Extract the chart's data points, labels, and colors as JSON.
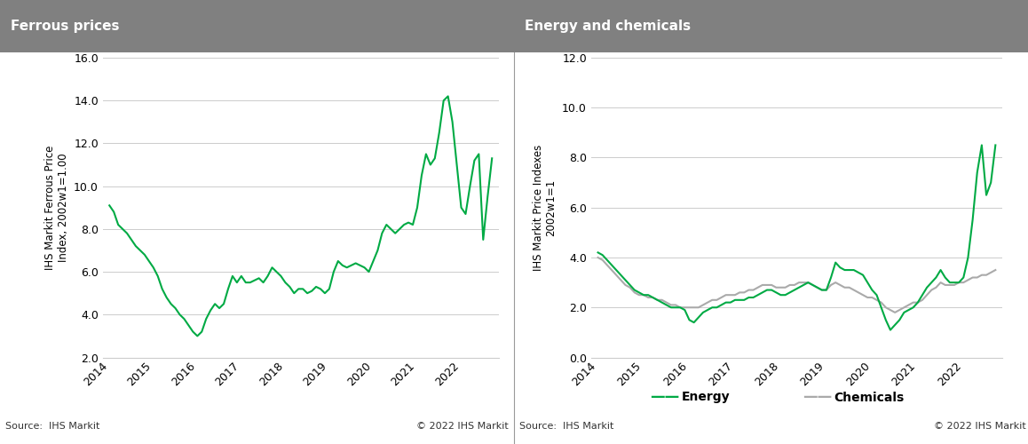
{
  "left_title": "Ferrous prices",
  "right_title": "Energy and chemicals",
  "left_ylabel": "IHS Markit Ferrous Price\nIndex, 2002w1=1.00",
  "right_ylabel": "IHS Markit Price Indexes\n2002w1=1",
  "left_ylim": [
    2.0,
    16.0
  ],
  "right_ylim": [
    0.0,
    12.0
  ],
  "left_yticks": [
    2.0,
    4.0,
    6.0,
    8.0,
    10.0,
    12.0,
    14.0,
    16.0
  ],
  "right_yticks": [
    0.0,
    2.0,
    4.0,
    6.0,
    8.0,
    10.0,
    12.0
  ],
  "xtick_years": [
    "2014",
    "2015",
    "2016",
    "2017",
    "2018",
    "2019",
    "2020",
    "2021",
    "2022"
  ],
  "header_color": "#808080",
  "header_text_color": "#ffffff",
  "line_green": "#00aa44",
  "line_gray": "#aaaaaa",
  "background_color": "#ffffff",
  "source_text": "Source:  IHS Markit",
  "copyright_text": "© 2022 IHS Markit",
  "legend_energy": "Energy",
  "legend_chemicals": "Chemicals",
  "ferrous_x": [
    2014.0,
    2014.1,
    2014.2,
    2014.3,
    2014.4,
    2014.5,
    2014.6,
    2014.7,
    2014.8,
    2014.9,
    2015.0,
    2015.1,
    2015.2,
    2015.3,
    2015.4,
    2015.5,
    2015.6,
    2015.7,
    2015.8,
    2015.9,
    2016.0,
    2016.1,
    2016.2,
    2016.3,
    2016.4,
    2016.5,
    2016.6,
    2016.7,
    2016.8,
    2016.9,
    2017.0,
    2017.1,
    2017.2,
    2017.3,
    2017.4,
    2017.5,
    2017.6,
    2017.7,
    2017.8,
    2017.9,
    2018.0,
    2018.1,
    2018.2,
    2018.3,
    2018.4,
    2018.5,
    2018.6,
    2018.7,
    2018.8,
    2018.9,
    2019.0,
    2019.1,
    2019.2,
    2019.3,
    2019.4,
    2019.5,
    2019.6,
    2019.7,
    2019.8,
    2019.9,
    2020.0,
    2020.1,
    2020.2,
    2020.3,
    2020.4,
    2020.5,
    2020.6,
    2020.7,
    2020.8,
    2020.9,
    2021.0,
    2021.1,
    2021.2,
    2021.3,
    2021.4,
    2021.5,
    2021.6,
    2021.7,
    2021.8,
    2021.9,
    2022.0,
    2022.1,
    2022.2,
    2022.3,
    2022.4,
    2022.5,
    2022.6,
    2022.7
  ],
  "ferrous_y": [
    9.1,
    8.8,
    8.2,
    8.0,
    7.8,
    7.5,
    7.2,
    7.0,
    6.8,
    6.5,
    6.2,
    5.8,
    5.2,
    4.8,
    4.5,
    4.3,
    4.0,
    3.8,
    3.5,
    3.2,
    3.0,
    3.2,
    3.8,
    4.2,
    4.5,
    4.3,
    4.5,
    5.2,
    5.8,
    5.5,
    5.8,
    5.5,
    5.5,
    5.6,
    5.7,
    5.5,
    5.8,
    6.2,
    6.0,
    5.8,
    5.5,
    5.3,
    5.0,
    5.2,
    5.2,
    5.0,
    5.1,
    5.3,
    5.2,
    5.0,
    5.2,
    6.0,
    6.5,
    6.3,
    6.2,
    6.3,
    6.4,
    6.3,
    6.2,
    6.0,
    6.5,
    7.0,
    7.8,
    8.2,
    8.0,
    7.8,
    8.0,
    8.2,
    8.3,
    8.2,
    9.0,
    10.5,
    11.5,
    11.0,
    11.3,
    12.5,
    14.0,
    14.2,
    13.0,
    11.0,
    9.0,
    8.7,
    10.0,
    11.2,
    11.5,
    7.5,
    9.5,
    11.3
  ],
  "energy_x": [
    2014.0,
    2014.1,
    2014.2,
    2014.3,
    2014.4,
    2014.5,
    2014.6,
    2014.7,
    2014.8,
    2014.9,
    2015.0,
    2015.1,
    2015.2,
    2015.3,
    2015.4,
    2015.5,
    2015.6,
    2015.7,
    2015.8,
    2015.9,
    2016.0,
    2016.1,
    2016.2,
    2016.3,
    2016.4,
    2016.5,
    2016.6,
    2016.7,
    2016.8,
    2016.9,
    2017.0,
    2017.1,
    2017.2,
    2017.3,
    2017.4,
    2017.5,
    2017.6,
    2017.7,
    2017.8,
    2017.9,
    2018.0,
    2018.1,
    2018.2,
    2018.3,
    2018.4,
    2018.5,
    2018.6,
    2018.7,
    2018.8,
    2018.9,
    2019.0,
    2019.1,
    2019.2,
    2019.3,
    2019.4,
    2019.5,
    2019.6,
    2019.7,
    2019.8,
    2019.9,
    2020.0,
    2020.1,
    2020.2,
    2020.3,
    2020.4,
    2020.5,
    2020.6,
    2020.7,
    2020.8,
    2020.9,
    2021.0,
    2021.1,
    2021.2,
    2021.3,
    2021.4,
    2021.5,
    2021.6,
    2021.7,
    2021.8,
    2021.9,
    2022.0,
    2022.1,
    2022.2,
    2022.3,
    2022.4,
    2022.5,
    2022.6,
    2022.7
  ],
  "energy_y": [
    4.2,
    4.1,
    3.9,
    3.7,
    3.5,
    3.3,
    3.1,
    2.9,
    2.7,
    2.6,
    2.5,
    2.5,
    2.4,
    2.3,
    2.2,
    2.1,
    2.0,
    2.0,
    2.0,
    1.9,
    1.5,
    1.4,
    1.6,
    1.8,
    1.9,
    2.0,
    2.0,
    2.1,
    2.2,
    2.2,
    2.3,
    2.3,
    2.3,
    2.4,
    2.4,
    2.5,
    2.6,
    2.7,
    2.7,
    2.6,
    2.5,
    2.5,
    2.6,
    2.7,
    2.8,
    2.9,
    3.0,
    2.9,
    2.8,
    2.7,
    2.7,
    3.2,
    3.8,
    3.6,
    3.5,
    3.5,
    3.5,
    3.4,
    3.3,
    3.0,
    2.7,
    2.5,
    2.0,
    1.5,
    1.1,
    1.3,
    1.5,
    1.8,
    1.9,
    2.0,
    2.2,
    2.5,
    2.8,
    3.0,
    3.2,
    3.5,
    3.2,
    3.0,
    3.0,
    3.0,
    3.2,
    4.0,
    5.5,
    7.4,
    8.5,
    6.5,
    7.0,
    8.5
  ],
  "chemicals_x": [
    2014.0,
    2014.1,
    2014.2,
    2014.3,
    2014.4,
    2014.5,
    2014.6,
    2014.7,
    2014.8,
    2014.9,
    2015.0,
    2015.1,
    2015.2,
    2015.3,
    2015.4,
    2015.5,
    2015.6,
    2015.7,
    2015.8,
    2015.9,
    2016.0,
    2016.1,
    2016.2,
    2016.3,
    2016.4,
    2016.5,
    2016.6,
    2016.7,
    2016.8,
    2016.9,
    2017.0,
    2017.1,
    2017.2,
    2017.3,
    2017.4,
    2017.5,
    2017.6,
    2017.7,
    2017.8,
    2017.9,
    2018.0,
    2018.1,
    2018.2,
    2018.3,
    2018.4,
    2018.5,
    2018.6,
    2018.7,
    2018.8,
    2018.9,
    2019.0,
    2019.1,
    2019.2,
    2019.3,
    2019.4,
    2019.5,
    2019.6,
    2019.7,
    2019.8,
    2019.9,
    2020.0,
    2020.1,
    2020.2,
    2020.3,
    2020.4,
    2020.5,
    2020.6,
    2020.7,
    2020.8,
    2020.9,
    2021.0,
    2021.1,
    2021.2,
    2021.3,
    2021.4,
    2021.5,
    2021.6,
    2021.7,
    2021.8,
    2021.9,
    2022.0,
    2022.1,
    2022.2,
    2022.3,
    2022.4,
    2022.5,
    2022.6,
    2022.7
  ],
  "chemicals_y": [
    4.0,
    3.9,
    3.7,
    3.5,
    3.3,
    3.1,
    2.9,
    2.8,
    2.6,
    2.5,
    2.5,
    2.4,
    2.4,
    2.3,
    2.3,
    2.2,
    2.1,
    2.1,
    2.0,
    2.0,
    2.0,
    2.0,
    2.0,
    2.1,
    2.2,
    2.3,
    2.3,
    2.4,
    2.5,
    2.5,
    2.5,
    2.6,
    2.6,
    2.7,
    2.7,
    2.8,
    2.9,
    2.9,
    2.9,
    2.8,
    2.8,
    2.8,
    2.9,
    2.9,
    3.0,
    3.0,
    3.0,
    2.9,
    2.8,
    2.7,
    2.7,
    2.9,
    3.0,
    2.9,
    2.8,
    2.8,
    2.7,
    2.6,
    2.5,
    2.4,
    2.4,
    2.3,
    2.2,
    2.0,
    1.9,
    1.8,
    1.9,
    2.0,
    2.1,
    2.2,
    2.2,
    2.3,
    2.5,
    2.7,
    2.8,
    3.0,
    2.9,
    2.9,
    2.9,
    3.0,
    3.0,
    3.1,
    3.2,
    3.2,
    3.3,
    3.3,
    3.4,
    3.5
  ]
}
